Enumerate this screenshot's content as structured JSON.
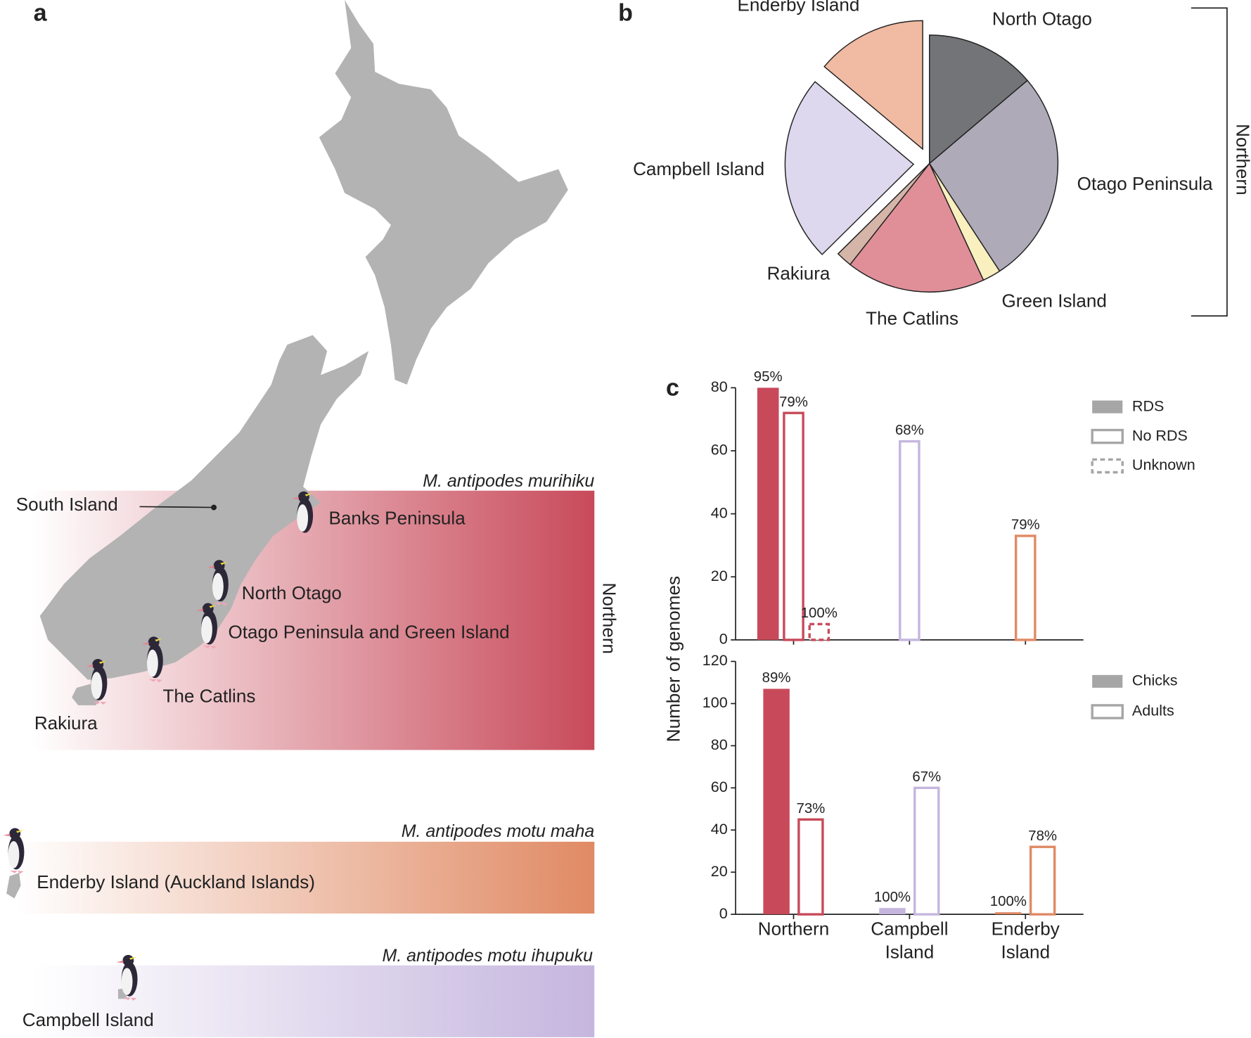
{
  "map": {
    "panel": "a",
    "south_island": "South Island",
    "sites": [
      "Banks Peninsula",
      "North Otago",
      "Otago Peninsula and Green Island",
      "The Catlins",
      "Rakiura"
    ],
    "bands": [
      {
        "title": "M. antipodes murihiku",
        "side_label": "Northern",
        "color": "#c84a5a"
      },
      {
        "title": "M. antipodes motu maha",
        "site": "Enderby Island (Auckland Islands)",
        "color": "#e08a64"
      },
      {
        "title": "M. antipodes motu ihupuku",
        "site": "Campbell Island",
        "color": "#c5b6de"
      }
    ]
  },
  "chart_data": [
    {
      "type": "pie",
      "panel": "b",
      "labels": [
        "North Otago",
        "Otago Peninsula",
        "Green Island",
        "The Catlins",
        "Rakiura",
        "Campbell Island",
        "Enderby Island"
      ],
      "values": [
        13.8,
        27,
        2.3,
        17.5,
        2,
        23.5,
        13.9
      ],
      "colors": [
        "#737478",
        "#aeaab8",
        "#f9efbf",
        "#e08f98",
        "#d4b5a8",
        "#ded8ee",
        "#f0baa3"
      ],
      "explode": [
        false,
        false,
        false,
        false,
        false,
        true,
        true
      ],
      "bracket_label": "Northern"
    },
    {
      "type": "bar",
      "panel": "c",
      "categories": [
        null,
        null,
        null
      ],
      "category_colors": [
        "#c84a5a",
        "#c5b6de",
        "#e08a64"
      ],
      "legend_color": "#a6a6a6",
      "series": [
        {
          "name": "RDS",
          "style": "filled",
          "values": [
            80,
            null,
            null
          ],
          "percent_labels": [
            "95%",
            null,
            null
          ]
        },
        {
          "name": "No RDS",
          "style": "outline",
          "values": [
            72,
            63,
            33
          ],
          "percent_labels": [
            "79%",
            "68%",
            "79%"
          ]
        },
        {
          "name": "Unknown",
          "style": "dashed",
          "values": [
            5,
            null,
            null
          ],
          "percent_labels": [
            "100%",
            null,
            null
          ]
        }
      ],
      "ylim": [
        0,
        80
      ],
      "yticks": [
        0,
        20,
        40,
        60,
        80
      ]
    },
    {
      "type": "bar",
      "y_label": "Number of genomes",
      "categories": [
        "Northern",
        "Campbell Island",
        "Enderby Island"
      ],
      "category_colors": [
        "#c84a5a",
        "#c5b6de",
        "#e08a64"
      ],
      "legend_color": "#a6a6a6",
      "series": [
        {
          "name": "Chicks",
          "style": "filled",
          "values": [
            107,
            3,
            1
          ],
          "percent_labels": [
            "89%",
            "100%",
            "100%"
          ]
        },
        {
          "name": "Adults",
          "style": "outline",
          "values": [
            45,
            60,
            32
          ],
          "percent_labels": [
            "73%",
            "67%",
            "78%"
          ]
        }
      ],
      "ylim": [
        0,
        120
      ],
      "yticks": [
        0,
        20,
        40,
        60,
        80,
        100,
        120
      ]
    }
  ]
}
